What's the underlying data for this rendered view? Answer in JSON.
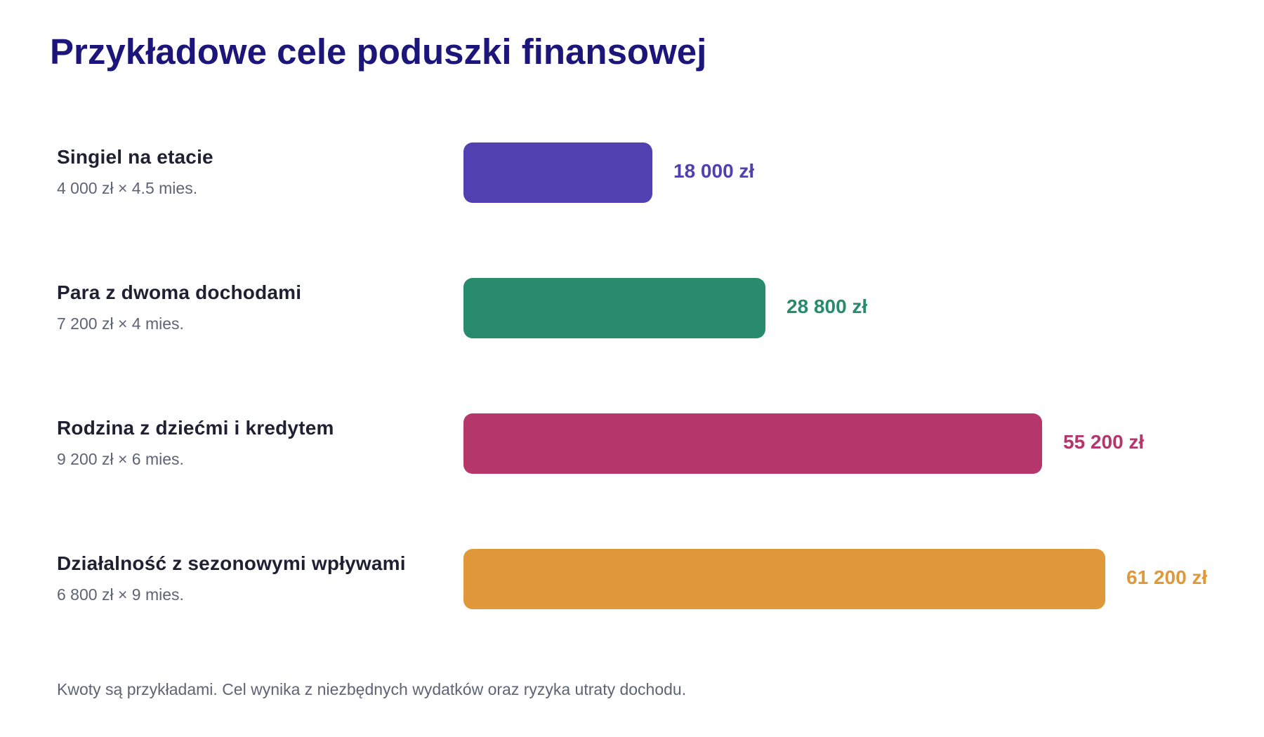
{
  "title": "Przykładowe cele poduszki finansowej",
  "footnote": "Kwoty są przykładami. Cel wynika z niezbędnych wydatków oraz ryzyka utraty dochodu.",
  "chart_data": {
    "type": "bar",
    "orientation": "horizontal",
    "title": "Przykładowe cele poduszki finansowej",
    "categories": [
      "Singiel na etacie",
      "Para z dwoma dochodami",
      "Rodzina z dziećmi i kredytem",
      "Działalność z sezonowymi wpływami"
    ],
    "values": [
      18000,
      28800,
      55200,
      61200
    ],
    "unit": "zł",
    "xlim": [
      0,
      61200
    ],
    "grid": false,
    "legend": "none",
    "rows": [
      {
        "label": "Singiel na etacie",
        "detail": "4 000 zł × 4.5 mies.",
        "value": 18000,
        "value_label": "18 000 zł",
        "color": "#5040b0"
      },
      {
        "label": "Para z dwoma dochodami",
        "detail": "7 200 zł × 4 mies.",
        "value": 28800,
        "value_label": "28 800 zł",
        "color": "#278b6c"
      },
      {
        "label": "Rodzina z dziećmi i kredytem",
        "detail": "9 200 zł × 6 mies.",
        "value": 55200,
        "value_label": "55 200 zł",
        "color": "#b5366a"
      },
      {
        "label": "Działalność z sezonowymi wpływami",
        "detail": "6 800 zł × 9 mies.",
        "value": 61200,
        "value_label": "61 200 zł",
        "color": "#e0993a"
      }
    ]
  }
}
